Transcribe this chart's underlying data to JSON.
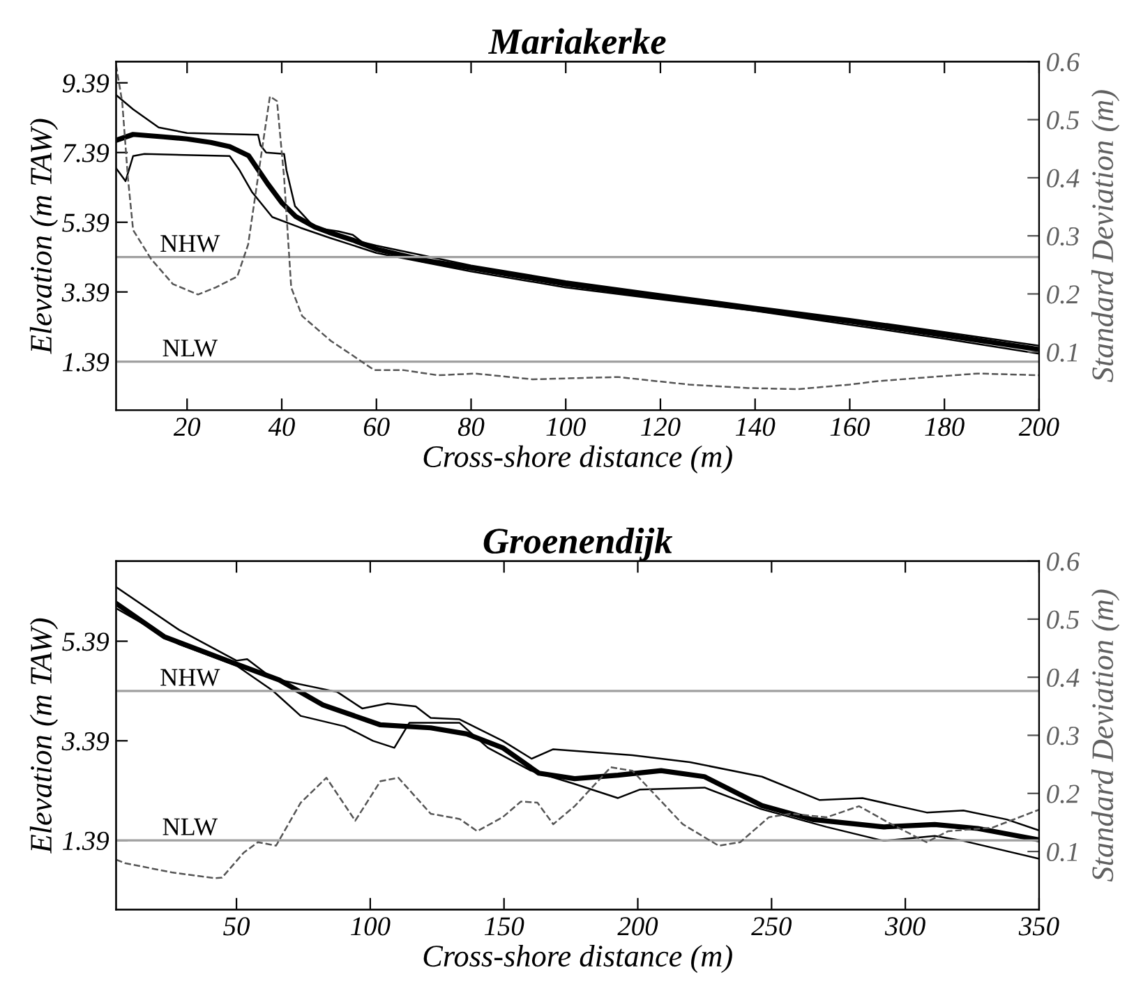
{
  "chart_data": [
    {
      "type": "line",
      "title": "Mariakerke",
      "xlabel": "Cross-shore distance (m)",
      "ylabel": "Elevation (m TAW)",
      "y2label": "Standard Deviation (m)",
      "xlim": [
        5,
        200
      ],
      "xticks": [
        20,
        40,
        60,
        80,
        100,
        120,
        140,
        160,
        180,
        200
      ],
      "ylim": [
        0,
        10
      ],
      "yticks": [
        1.39,
        3.39,
        5.39,
        7.39,
        9.39
      ],
      "y2lim": [
        0,
        0.6
      ],
      "y2ticks": [
        0.1,
        0.2,
        0.3,
        0.4,
        0.5,
        0.6
      ],
      "grid": false,
      "legend": false,
      "ref_lines": [
        {
          "axis": "y",
          "value": 4.39,
          "label": "NHW",
          "color": "#a0a0a0"
        },
        {
          "axis": "y",
          "value": 1.39,
          "label": "NLW",
          "color": "#a0a0a0"
        }
      ],
      "series": [
        {
          "color": "#000000",
          "line_style": "solid",
          "x": [
            5,
            8.6,
            15,
            20,
            25,
            29,
            33,
            35,
            37,
            40,
            43,
            47,
            50,
            55,
            60,
            70,
            80,
            90,
            100,
            120,
            140,
            160,
            180,
            200
          ],
          "values": [
            7.74,
            7.91,
            7.84,
            7.78,
            7.68,
            7.56,
            7.3,
            6.9,
            6.5,
            5.95,
            5.55,
            5.25,
            5.1,
            4.88,
            4.62,
            4.3,
            4.08,
            3.85,
            3.62,
            3.25,
            2.9,
            2.55,
            2.15,
            1.74
          ]
        },
        {
          "color": "#000000",
          "line_style": "solid",
          "x": [
            5,
            8.6,
            14,
            20,
            35,
            35.5,
            36.7,
            40.5,
            41,
            42.8,
            47,
            52,
            55,
            57,
            60,
            80,
            100,
            120,
            140,
            160,
            180,
            200
          ],
          "values": [
            9.04,
            8.63,
            8.11,
            7.95,
            7.9,
            7.6,
            7.39,
            7.35,
            6.88,
            5.85,
            5.23,
            5.13,
            5.03,
            4.82,
            4.72,
            4.15,
            3.7,
            3.33,
            2.97,
            2.62,
            2.24,
            1.85
          ]
        },
        {
          "color": "#000000",
          "line_style": "solid",
          "x": [
            5,
            7,
            8.6,
            11,
            29,
            31,
            33.7,
            38,
            44,
            50,
            60,
            80,
            100,
            120,
            140,
            160,
            180,
            200
          ],
          "values": [
            6.94,
            6.57,
            7.29,
            7.35,
            7.29,
            6.9,
            6.26,
            5.54,
            5.23,
            4.95,
            4.51,
            3.98,
            3.52,
            3.18,
            2.85,
            2.45,
            2.05,
            1.62
          ]
        },
        {
          "color": "#555555",
          "line_style": "dashed",
          "axis": "y2",
          "x": [
            5,
            6.3,
            7.5,
            8.6,
            12.4,
            17,
            22.3,
            26,
            30.6,
            32.9,
            36,
            37.5,
            39,
            40.5,
            42,
            44.3,
            50.4,
            55,
            59.5,
            65.6,
            73,
            80.8,
            93,
            111,
            126,
            138.5,
            149,
            160,
            166,
            187,
            200
          ],
          "values": [
            0.594,
            0.53,
            0.4,
            0.31,
            0.26,
            0.217,
            0.199,
            0.211,
            0.23,
            0.285,
            0.458,
            0.54,
            0.532,
            0.4,
            0.211,
            0.162,
            0.119,
            0.094,
            0.069,
            0.069,
            0.06,
            0.063,
            0.053,
            0.057,
            0.044,
            0.038,
            0.036,
            0.044,
            0.05,
            0.063,
            0.06
          ]
        }
      ]
    },
    {
      "type": "line",
      "title": "Groenendijk",
      "xlabel": "Cross-shore distance (m)",
      "ylabel": "Elevation (m TAW)",
      "y2label": "Standard Deviation (m)",
      "xlim": [
        5,
        350
      ],
      "xticks": [
        50,
        100,
        150,
        200,
        250,
        300,
        350
      ],
      "ylim": [
        0,
        7
      ],
      "yticks": [
        1.39,
        3.39,
        5.39
      ],
      "y2lim": [
        0,
        0.6
      ],
      "y2ticks": [
        0.1,
        0.2,
        0.3,
        0.4,
        0.5,
        0.6
      ],
      "grid": false,
      "legend": false,
      "ref_lines": [
        {
          "axis": "y",
          "value": 4.39,
          "label": "NHW",
          "color": "#a0a0a0"
        },
        {
          "axis": "y",
          "value": 1.39,
          "label": "NLW",
          "color": "#a0a0a0"
        }
      ],
      "series": [
        {
          "color": "#000000",
          "line_style": "solid",
          "x": [
            5,
            23,
            50,
            66,
            82.3,
            103.8,
            122.6,
            136,
            149.5,
            163,
            176.4,
            192.6,
            208.7,
            224.9,
            246.4,
            265.2,
            292,
            311,
            327,
            350
          ],
          "values": [
            6.15,
            5.48,
            4.93,
            4.61,
            4.11,
            3.71,
            3.65,
            3.53,
            3.25,
            2.74,
            2.63,
            2.7,
            2.79,
            2.67,
            2.09,
            1.81,
            1.66,
            1.71,
            1.63,
            1.4
          ]
        },
        {
          "color": "#000000",
          "line_style": "solid",
          "x": [
            5,
            28.5,
            50,
            54,
            63.5,
            87.7,
            97,
            106.5,
            117,
            122.6,
            133.4,
            149.5,
            160.3,
            168.4,
            198,
            219.5,
            246.4,
            268,
            284,
            308,
            321.7,
            337.9,
            350
          ],
          "values": [
            6.48,
            5.62,
            5.0,
            5.03,
            4.64,
            4.37,
            4.04,
            4.14,
            4.08,
            3.85,
            3.82,
            3.39,
            3.03,
            3.22,
            3.1,
            2.96,
            2.67,
            2.2,
            2.24,
            1.95,
            1.99,
            1.81,
            1.59
          ]
        },
        {
          "color": "#000000",
          "line_style": "solid",
          "x": [
            5,
            28.5,
            50,
            63.5,
            74,
            90.4,
            101,
            109,
            114.6,
            133.4,
            144,
            160,
            176,
            192.6,
            200.7,
            225,
            246,
            270.6,
            292,
            311,
            321.7,
            350
          ],
          "values": [
            6.05,
            5.33,
            4.9,
            4.4,
            3.89,
            3.68,
            3.39,
            3.25,
            3.75,
            3.75,
            3.25,
            2.79,
            2.53,
            2.24,
            2.41,
            2.45,
            2.02,
            1.66,
            1.38,
            1.48,
            1.38,
            1.02
          ]
        },
        {
          "color": "#555555",
          "line_style": "dashed",
          "axis": "y2",
          "x": [
            5,
            8.3,
            25.8,
            42,
            44.6,
            52.7,
            58,
            64.8,
            74,
            83.6,
            94.4,
            103.8,
            110.5,
            122.6,
            133.4,
            140,
            149.5,
            156.3,
            162.5,
            168.4,
            176.4,
            189.9,
            198,
            216.8,
            230.2,
            238.3,
            249,
            257,
            270.6,
            282.7,
            294.8,
            307.9,
            316,
            332.5,
            350
          ],
          "values": [
            0.086,
            0.08,
            0.064,
            0.054,
            0.055,
            0.098,
            0.116,
            0.11,
            0.184,
            0.227,
            0.153,
            0.221,
            0.227,
            0.165,
            0.156,
            0.135,
            0.159,
            0.186,
            0.184,
            0.147,
            0.178,
            0.245,
            0.239,
            0.147,
            0.11,
            0.116,
            0.159,
            0.165,
            0.159,
            0.178,
            0.147,
            0.116,
            0.135,
            0.141,
            0.172
          ]
        }
      ]
    }
  ]
}
